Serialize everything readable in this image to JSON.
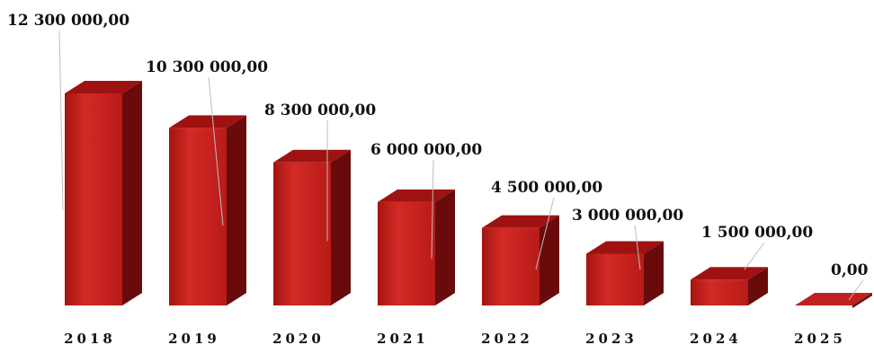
{
  "chart_data": {
    "type": "bar",
    "style": "3d-column",
    "categories": [
      "2018",
      "2019",
      "2020",
      "2021",
      "2022",
      "2023",
      "2024",
      "2025"
    ],
    "values": [
      12300000,
      10300000,
      8300000,
      6000000,
      4500000,
      3000000,
      1500000,
      0
    ],
    "data_labels": [
      "12 300 000,00",
      "10 300 000,00",
      "8 300 000,00",
      "6 000 000,00",
      "4 500 000,00",
      "3 000 000,00",
      "1 500 000,00",
      "0,00"
    ],
    "title": "",
    "xlabel": "",
    "ylabel": "",
    "ylim": [
      0,
      12300000
    ],
    "grid": false,
    "legend": "none",
    "colors": {
      "front": "#c0201e",
      "top": "#9e1212",
      "side": "#6a0b0b",
      "text": "#111111",
      "leader": "#bdbdbd"
    }
  }
}
